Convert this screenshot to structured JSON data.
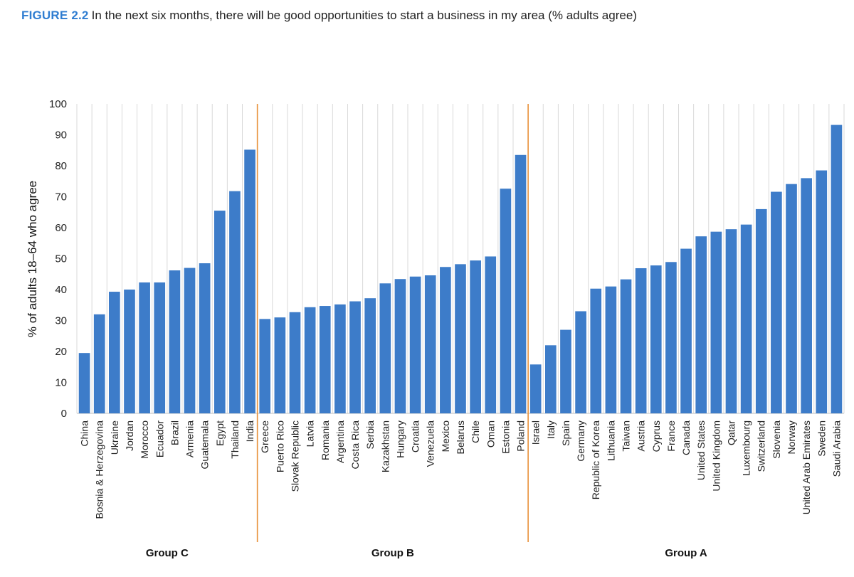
{
  "figure": {
    "label": "FIGURE 2.2",
    "caption": "In the next six months, there will be good opportunities to start a business in my area (% adults agree)"
  },
  "colors": {
    "bar": "#3d7cc9",
    "group_divider": "#e8913a",
    "grid": "#d9d9d9",
    "accent": "#2f7dd1"
  },
  "chart_data": {
    "type": "bar",
    "title": "In the next six months, there will be good opportunities to start a business in my area (% adults agree)",
    "xlabel": "",
    "ylabel": "% of adults 18–64 who agree",
    "ylim": [
      0,
      100
    ],
    "yticks": [
      0,
      10,
      20,
      30,
      40,
      50,
      60,
      70,
      80,
      90,
      100
    ],
    "grid": true,
    "groups": [
      {
        "name": "Group C",
        "categories": [
          "China",
          "Bosnia & Herzegovina",
          "Ukraine",
          "Jordan",
          "Morocco",
          "Ecuador",
          "Brazil",
          "Armenia",
          "Guatemala",
          "Egypt",
          "Thailand",
          "India"
        ],
        "values": [
          19.5,
          32,
          39.3,
          40,
          42.3,
          42.3,
          46.2,
          47,
          48.5,
          65.5,
          71.8,
          85.2
        ]
      },
      {
        "name": "Group B",
        "categories": [
          "Greece",
          "Puerto Rico",
          "Slovak Republic",
          "Latvia",
          "Romania",
          "Argentina",
          "Costa Rica",
          "Serbia",
          "Kazakhstan",
          "Hungary",
          "Croatia",
          "Venezuela",
          "Mexico",
          "Belarus",
          "Chile",
          "Oman",
          "Estonia",
          "Poland"
        ],
        "values": [
          30.5,
          31,
          32.7,
          34.3,
          34.7,
          35.2,
          36.2,
          37.2,
          42,
          43.4,
          44.2,
          44.6,
          47.3,
          48.2,
          49.4,
          50.7,
          72.6,
          83.5
        ]
      },
      {
        "name": "Group A",
        "categories": [
          "Israel",
          "Italy",
          "Spain",
          "Germany",
          "Republic of Korea",
          "Lithuania",
          "Taiwan",
          "Austria",
          "Cyprus",
          "France",
          "Canada",
          "United States",
          "United Kingdom",
          "Qatar",
          "Luxembourg",
          "Switzerland",
          "Slovenia",
          "Norway",
          "United Arab Emirates",
          "Sweden",
          "Saudi Arabia"
        ],
        "values": [
          15.8,
          22,
          27,
          33,
          40.3,
          41,
          43.3,
          46.9,
          47.8,
          48.9,
          53.2,
          57.2,
          58.7,
          59.5,
          61,
          66,
          71.6,
          74.1,
          76,
          78.5,
          93.2
        ]
      }
    ]
  }
}
